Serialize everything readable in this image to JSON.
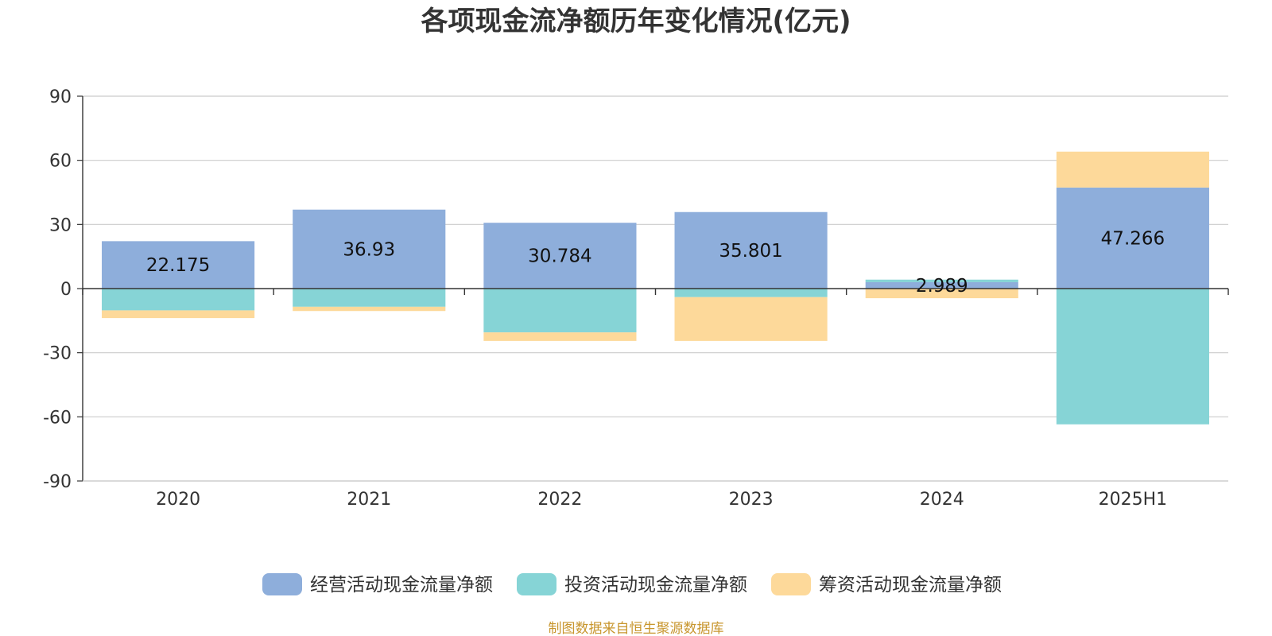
{
  "chart_data": {
    "type": "bar",
    "stacked": true,
    "title": "各项现金流净额历年变化情况(亿元)",
    "categories": [
      "2020",
      "2021",
      "2022",
      "2023",
      "2024",
      "2025H1"
    ],
    "ylim": [
      -90,
      90
    ],
    "yticks": [
      90,
      60,
      30,
      0,
      -30,
      -60,
      -90
    ],
    "ytick_labels": [
      "90",
      "60",
      "30",
      "0",
      "-30",
      "-60",
      "-90"
    ],
    "grid": true,
    "legend_position": "bottom",
    "series": [
      {
        "name": "经营活动现金流量净额",
        "color": "#8eaedb",
        "values": [
          22.175,
          36.93,
          30.784,
          35.801,
          2.989,
          47.266
        ],
        "labels": [
          "22.175",
          "36.93",
          "30.784",
          "35.801",
          "2.989",
          "47.266"
        ]
      },
      {
        "name": "投资活动现金流量净额",
        "color": "#86d4d6",
        "values": [
          -10.2,
          -8.5,
          -20.5,
          -4.0,
          1.2,
          -63.5
        ]
      },
      {
        "name": "筹资活动现金流量净额",
        "color": "#fdd99a",
        "values": [
          -3.6,
          -2.0,
          -4.0,
          -20.5,
          -4.5,
          16.8
        ]
      }
    ],
    "source": "制图数据来自恒生聚源数据库"
  }
}
